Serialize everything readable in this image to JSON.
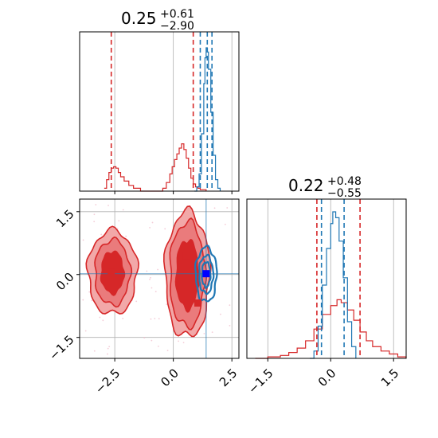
{
  "colors": {
    "red": "#d62728",
    "blue": "#1f77b4",
    "grid": "#b0b0b0",
    "red_fill_light": "#f2a0a1",
    "red_fill_mid": "#e46566"
  },
  "icons": [
    "square-marker"
  ],
  "chart_data": [
    {
      "id": "top-left",
      "type": "area",
      "title_value": "0.25",
      "title_plus": "+0.61",
      "title_minus": "−2.90",
      "xlim": [
        -4.0,
        2.8
      ],
      "series": [
        {
          "color": "#d62728",
          "values": [
            [
              -2.95,
              0.02
            ],
            [
              -2.85,
              0.08
            ],
            [
              -2.75,
              0.13
            ],
            [
              -2.65,
              0.16
            ],
            [
              -2.55,
              0.17
            ],
            [
              -2.45,
              0.16
            ],
            [
              -2.35,
              0.13
            ],
            [
              -2.25,
              0.1
            ],
            [
              -2.1,
              0.07
            ],
            [
              -1.9,
              0.04
            ],
            [
              -1.7,
              0.02
            ],
            [
              -1.4,
              0.0
            ],
            [
              -0.45,
              0.02
            ],
            [
              -0.3,
              0.06
            ],
            [
              -0.15,
              0.12
            ],
            [
              -0.05,
              0.17
            ],
            [
              0.05,
              0.22
            ],
            [
              0.15,
              0.26
            ],
            [
              0.25,
              0.3
            ],
            [
              0.35,
              0.33
            ],
            [
              0.45,
              0.29
            ],
            [
              0.55,
              0.23
            ],
            [
              0.65,
              0.16
            ],
            [
              0.75,
              0.09
            ],
            [
              0.85,
              0.05
            ],
            [
              0.95,
              0.03
            ],
            [
              1.05,
              0.02
            ],
            [
              1.15,
              0.01
            ],
            [
              1.4,
              0.0
            ]
          ]
        },
        {
          "color": "#1f77b4",
          "values": [
            [
              0.9,
              0.0
            ],
            [
              1.0,
              0.03
            ],
            [
              1.1,
              0.12
            ],
            [
              1.2,
              0.4
            ],
            [
              1.3,
              0.75
            ],
            [
              1.35,
              0.93
            ],
            [
              1.4,
              1.0
            ],
            [
              1.45,
              0.97
            ],
            [
              1.5,
              0.85
            ],
            [
              1.6,
              0.55
            ],
            [
              1.7,
              0.25
            ],
            [
              1.8,
              0.08
            ],
            [
              1.9,
              0.02
            ],
            [
              2.0,
              0.0
            ]
          ]
        }
      ],
      "vlines": [
        {
          "x": -2.65,
          "color": "#d62728"
        },
        {
          "x": 0.85,
          "color": "#d62728"
        },
        {
          "x": 1.15,
          "color": "#1f77b4"
        },
        {
          "x": 1.45,
          "color": "#1f77b4"
        },
        {
          "x": 1.65,
          "color": "#1f77b4"
        }
      ]
    },
    {
      "id": "bottom-left",
      "type": "scatter",
      "xlim": [
        -4.0,
        2.8
      ],
      "ylim": [
        -2.0,
        1.8
      ],
      "xticks": [
        -2.5,
        0.0,
        2.5
      ],
      "xtick_labels": [
        "−2.5",
        "0.0",
        "2.5"
      ],
      "yticks": [
        -1.5,
        0.0,
        1.5
      ],
      "ytick_labels": [
        "−1.5",
        "0.0",
        "1.5"
      ],
      "grid": true,
      "contours": [
        {
          "color": "#d62728",
          "filled": true,
          "center": [
            -2.6,
            0.05
          ],
          "radii": [
            [
              1.05,
              1.0
            ],
            [
              0.75,
              0.78
            ],
            [
              0.48,
              0.5
            ]
          ]
        },
        {
          "color": "#d62728",
          "filled": true,
          "center": [
            0.6,
            0.0
          ],
          "radii": [
            [
              0.95,
              1.5
            ],
            [
              0.75,
              1.25
            ],
            [
              0.48,
              0.82
            ]
          ]
        },
        {
          "color": "#1f77b4",
          "filled": false,
          "center": [
            1.4,
            0.0
          ],
          "radii": [
            [
              0.45,
              0.65
            ],
            [
              0.3,
              0.45
            ],
            [
              0.18,
              0.3
            ]
          ]
        }
      ],
      "markers": [
        {
          "x": -2.65,
          "y": 0.05,
          "color": "#d62728"
        },
        {
          "x": 0.55,
          "y": 0.45,
          "color": "#d62728"
        },
        {
          "x": 1.05,
          "y": -0.68,
          "color": "#d62728"
        },
        {
          "x": 1.4,
          "y": 0.02,
          "color": "#0000ff"
        }
      ],
      "crosshair": {
        "x": 1.4,
        "y": 0.02,
        "color": "#1f77b4"
      }
    },
    {
      "id": "bottom-right",
      "type": "area",
      "title_value": "0.22",
      "title_plus": "+0.48",
      "title_minus": "−0.55",
      "xlim": [
        -2.0,
        1.8
      ],
      "xticks": [
        -1.5,
        0.0,
        1.5
      ],
      "xtick_labels": [
        "−1.5",
        "0.0",
        "1.5"
      ],
      "grid": true,
      "series": [
        {
          "color": "#d62728",
          "values": [
            [
              -1.8,
              0.0
            ],
            [
              -1.5,
              0.01
            ],
            [
              -1.2,
              0.02
            ],
            [
              -1.0,
              0.04
            ],
            [
              -0.8,
              0.07
            ],
            [
              -0.6,
              0.12
            ],
            [
              -0.4,
              0.2
            ],
            [
              -0.2,
              0.3
            ],
            [
              0.0,
              0.36
            ],
            [
              0.15,
              0.4
            ],
            [
              0.25,
              0.38
            ],
            [
              0.4,
              0.33
            ],
            [
              0.55,
              0.26
            ],
            [
              0.7,
              0.18
            ],
            [
              0.85,
              0.12
            ],
            [
              1.0,
              0.08
            ],
            [
              1.2,
              0.05
            ],
            [
              1.4,
              0.03
            ],
            [
              1.6,
              0.01
            ],
            [
              1.8,
              0.0
            ]
          ]
        },
        {
          "color": "#1f77b4",
          "values": [
            [
              -0.5,
              0.0
            ],
            [
              -0.4,
              0.05
            ],
            [
              -0.3,
              0.22
            ],
            [
              -0.2,
              0.5
            ],
            [
              -0.1,
              0.75
            ],
            [
              0.0,
              0.92
            ],
            [
              0.05,
              1.0
            ],
            [
              0.12,
              0.96
            ],
            [
              0.2,
              0.8
            ],
            [
              0.3,
              0.55
            ],
            [
              0.4,
              0.25
            ],
            [
              0.5,
              0.08
            ],
            [
              0.6,
              0.0
            ]
          ]
        }
      ],
      "vlines": [
        {
          "x": -0.33,
          "color": "#d62728"
        },
        {
          "x": 0.7,
          "color": "#d62728"
        },
        {
          "x": -0.22,
          "color": "#1f77b4"
        },
        {
          "x": 0.32,
          "color": "#1f77b4"
        }
      ]
    }
  ]
}
